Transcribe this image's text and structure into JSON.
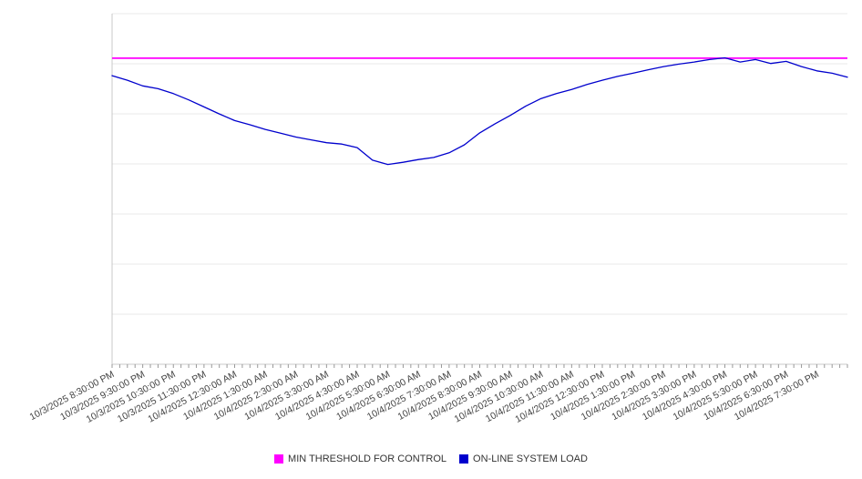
{
  "chart_data": {
    "type": "line",
    "title": "",
    "xlabel": "",
    "ylabel": "",
    "ylim": [
      0,
      100
    ],
    "grid": true,
    "grid_divisions": 7,
    "legend_position": "bottom",
    "x_labels": [
      "10/3/2025 8:30:00 PM",
      "10/3/2025 9:30:00 PM",
      "10/3/2025 10:30:00 PM",
      "10/3/2025 11:30:00 PM",
      "10/4/2025 12:30:00 AM",
      "10/4/2025 1:30:00 AM",
      "10/4/2025 2:30:00 AM",
      "10/4/2025 3:30:00 AM",
      "10/4/2025 4:30:00 AM",
      "10/4/2025 5:30:00 AM",
      "10/4/2025 6:30:00 AM",
      "10/4/2025 7:30:00 AM",
      "10/4/2025 8:30:00 AM",
      "10/4/2025 9:30:00 AM",
      "10/4/2025 10:30:00 AM",
      "10/4/2025 11:30:00 AM",
      "10/4/2025 12:30:00 PM",
      "10/4/2025 1:30:00 PM",
      "10/4/2025 2:30:00 PM",
      "10/4/2025 3:30:00 PM",
      "10/4/2025 4:30:00 PM",
      "10/4/2025 5:30:00 PM",
      "10/4/2025 6:30:00 PM",
      "10/4/2025 7:30:00 PM"
    ],
    "points_per_label_interval": 2,
    "x_step_minutes": 30,
    "series": [
      {
        "name": "MIN THRESHOLD FOR CONTROL",
        "color": "#ff00ff",
        "mode": "threshold",
        "value": 87.3
      },
      {
        "name": "ON-LINE SYSTEM LOAD",
        "color": "#0000cd",
        "mode": "line",
        "values": [
          82.3,
          81.0,
          79.4,
          78.6,
          77.2,
          75.4,
          73.4,
          71.4,
          69.5,
          68.3,
          67.0,
          65.9,
          64.8,
          64.0,
          63.2,
          62.8,
          61.8,
          58.2,
          57.0,
          57.6,
          58.4,
          59.0,
          60.3,
          62.6,
          66.0,
          68.6,
          71.0,
          73.6,
          75.8,
          77.2,
          78.4,
          79.8,
          81.0,
          82.1,
          83.0,
          84.0,
          84.9,
          85.6,
          86.2,
          86.9,
          87.4,
          86.2,
          86.9,
          85.8,
          86.4,
          84.9,
          83.7,
          83.0,
          81.9
        ]
      }
    ]
  },
  "colors": {
    "gridline": "#e8e8e8",
    "axis_line": "#c8c8c8",
    "tick": "#999999",
    "axis_label_text": "#444444",
    "legend_text": "#333333",
    "background": "#ffffff"
  }
}
